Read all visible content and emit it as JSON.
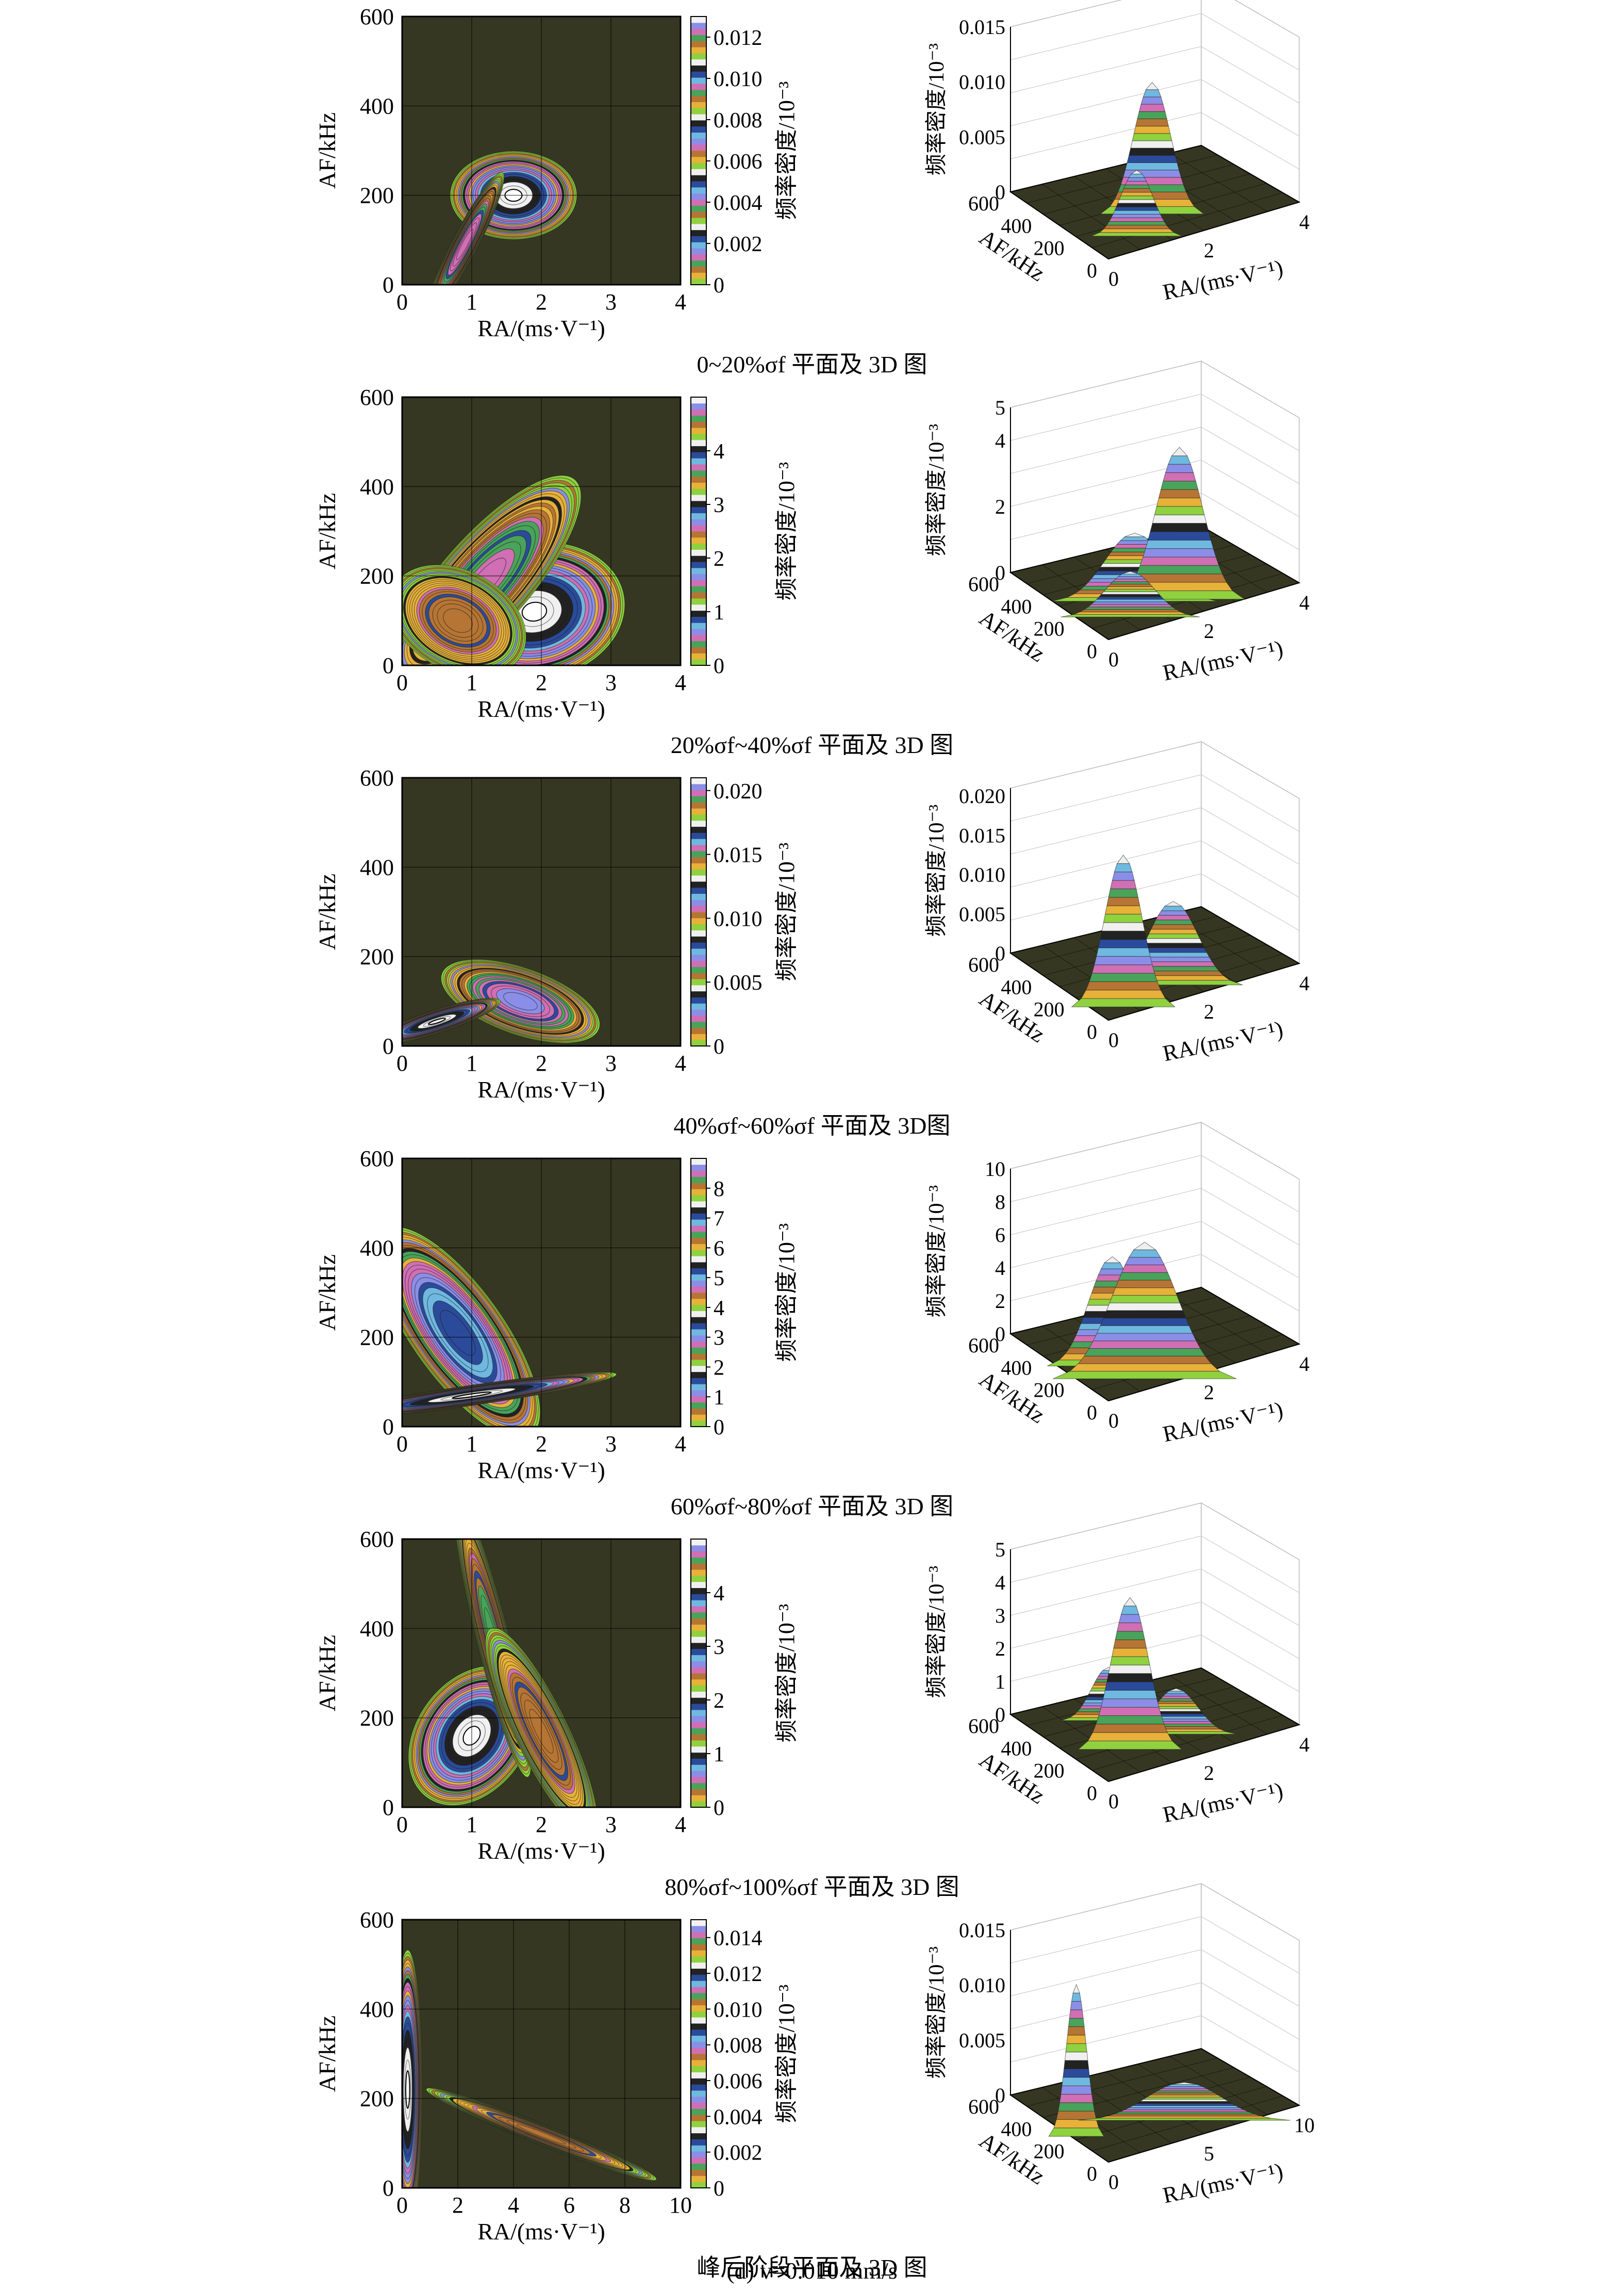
{
  "figure": {
    "caption": "(d) v=0.010 mm/s"
  },
  "chart_data": [
    {
      "type": "heatmap",
      "panel_caption": "0~20%σf 平面及 3D 图",
      "xlabel": "RA/(ms·V⁻¹)",
      "ylabel": "AF/kHz",
      "xlim": [
        0,
        4
      ],
      "ylim": [
        0,
        600
      ],
      "xticks": [
        "0",
        "1",
        "2",
        "3",
        "4"
      ],
      "yticks": [
        "0",
        "200",
        "400",
        "600"
      ],
      "colorbar": {
        "label": "频率密度/10⁻³",
        "range": [
          0,
          0.013
        ],
        "ticks": [
          "0",
          "0.002",
          "0.004",
          "0.006",
          "0.008",
          "0.010",
          "0.012"
        ]
      },
      "peaks": [
        {
          "ra": 1.6,
          "af": 200,
          "sx": 0.35,
          "sy": 38,
          "rho": 0.0,
          "amp": 1.0
        },
        {
          "ra": 0.9,
          "af": 90,
          "sx": 0.28,
          "sy": 80,
          "rho": 0.93,
          "amp": 0.5
        }
      ],
      "surface": {
        "zlabel": "频率密度/10⁻³",
        "zticks": [
          "0",
          "0.005",
          "0.010",
          "0.015"
        ],
        "zmax": 0.015,
        "ra_ticks": [
          "0",
          "2",
          "4"
        ],
        "af_ticks": [
          "0",
          "200",
          "400",
          "600"
        ]
      }
    },
    {
      "type": "heatmap",
      "panel_caption": "20%σf~40%σf 平面及 3D 图",
      "xlabel": "RA/(ms·V⁻¹)",
      "ylabel": "AF/kHz",
      "xlim": [
        0,
        4
      ],
      "ylim": [
        0,
        600
      ],
      "xticks": [
        "0",
        "1",
        "2",
        "3",
        "4"
      ],
      "yticks": [
        "0",
        "200",
        "400",
        "600"
      ],
      "colorbar": {
        "label": "频率密度/10⁻³",
        "range": [
          0,
          5
        ],
        "ticks": [
          "0",
          "1",
          "2",
          "3",
          "4"
        ]
      },
      "peaks": [
        {
          "ra": 1.9,
          "af": 120,
          "sx": 0.5,
          "sy": 60,
          "rho": 0.1,
          "amp": 1.0
        },
        {
          "ra": 1.2,
          "af": 190,
          "sx": 0.7,
          "sy": 120,
          "rho": 0.8,
          "amp": 0.45
        },
        {
          "ra": 0.8,
          "af": 100,
          "sx": 0.55,
          "sy": 70,
          "rho": -0.3,
          "amp": 0.3
        }
      ],
      "surface": {
        "zlabel": "频率密度/10⁻³",
        "zticks": [
          "0",
          "2",
          "4",
          "5"
        ],
        "zmax": 5,
        "ra_ticks": [
          "0",
          "2",
          "4"
        ],
        "af_ticks": [
          "0",
          "200",
          "400",
          "600"
        ]
      }
    },
    {
      "type": "heatmap",
      "panel_caption": "40%σf~60%σf 平面及 3D图",
      "xlabel": "RA/(ms·V⁻¹)",
      "ylabel": "AF/kHz",
      "xlim": [
        0,
        4
      ],
      "ylim": [
        0,
        600
      ],
      "xticks": [
        "0",
        "1",
        "2",
        "3",
        "4"
      ],
      "yticks": [
        "0",
        "200",
        "400",
        "600"
      ],
      "colorbar": {
        "label": "频率密度/10⁻³",
        "range": [
          0,
          0.021
        ],
        "ticks": [
          "0",
          "0.005",
          "0.010",
          "0.015",
          "0.020"
        ]
      },
      "peaks": [
        {
          "ra": 1.7,
          "af": 100,
          "sx": 0.55,
          "sy": 45,
          "rho": -0.55,
          "amp": 0.55
        },
        {
          "ra": 0.5,
          "af": 55,
          "sx": 0.35,
          "sy": 20,
          "rho": 0.85,
          "amp": 1.0
        }
      ],
      "surface": {
        "zlabel": "频率密度/10⁻³",
        "zticks": [
          "0",
          "0.005",
          "0.010",
          "0.015",
          "0.020"
        ],
        "zmax": 0.021,
        "ra_ticks": [
          "0",
          "2",
          "4"
        ],
        "af_ticks": [
          "0",
          "200",
          "400",
          "600"
        ]
      }
    },
    {
      "type": "heatmap",
      "panel_caption": "60%σf~80%σf 平面及 3D 图",
      "xlabel": "RA/(ms·V⁻¹)",
      "ylabel": "AF/kHz",
      "xlim": [
        0,
        4
      ],
      "ylim": [
        0,
        600
      ],
      "xticks": [
        "0",
        "1",
        "2",
        "3",
        "4"
      ],
      "yticks": [
        "0",
        "200",
        "400",
        "600"
      ],
      "colorbar": {
        "label": "频率密度/10⁻³",
        "range": [
          0,
          9
        ],
        "ticks": [
          "0",
          "1",
          "2",
          "3",
          "4",
          "5",
          "6",
          "7",
          "8"
        ]
      },
      "peaks": [
        {
          "ra": 0.8,
          "af": 210,
          "sx": 0.5,
          "sy": 100,
          "rho": -0.75,
          "amp": 0.8
        },
        {
          "ra": 1.0,
          "af": 70,
          "sx": 0.8,
          "sy": 20,
          "rho": 0.9,
          "amp": 1.0
        }
      ],
      "surface": {
        "zlabel": "频率密度/10⁻³",
        "zticks": [
          "0",
          "2",
          "4",
          "6",
          "8",
          "10"
        ],
        "zmax": 10,
        "ra_ticks": [
          "0",
          "2",
          "4"
        ],
        "af_ticks": [
          "0",
          "200",
          "400",
          "600"
        ]
      }
    },
    {
      "type": "heatmap",
      "panel_caption": "80%σf~100%σf 平面及 3D 图",
      "xlabel": "RA/(ms·V⁻¹)",
      "ylabel": "AF/kHz",
      "xlim": [
        0,
        4
      ],
      "ylim": [
        0,
        600
      ],
      "xticks": [
        "0",
        "1",
        "2",
        "3",
        "4"
      ],
      "yticks": [
        "0",
        "200",
        "400",
        "600"
      ],
      "colorbar": {
        "label": "频率密度/10⁻³",
        "range": [
          0,
          5
        ],
        "ticks": [
          "0",
          "1",
          "2",
          "3",
          "4"
        ]
      },
      "peaks": [
        {
          "ra": 1.0,
          "af": 160,
          "sx": 0.35,
          "sy": 60,
          "rho": 0.3,
          "amp": 1.0
        },
        {
          "ra": 1.3,
          "af": 380,
          "sx": 0.3,
          "sy": 170,
          "rho": -0.9,
          "amp": 0.35
        },
        {
          "ra": 2.0,
          "af": 170,
          "sx": 0.45,
          "sy": 130,
          "rho": -0.85,
          "amp": 0.3
        }
      ],
      "surface": {
        "zlabel": "频率密度/10⁻³",
        "zticks": [
          "0",
          "1",
          "2",
          "3",
          "4",
          "5"
        ],
        "zmax": 5,
        "ra_ticks": [
          "0",
          "2",
          "4"
        ],
        "af_ticks": [
          "0",
          "200",
          "400",
          "600"
        ]
      }
    },
    {
      "type": "heatmap",
      "panel_caption": "峰后阶段平面及 3D 图",
      "xlabel": "RA/(ms·V⁻¹)",
      "ylabel": "AF/kHz",
      "xlim": [
        0,
        10
      ],
      "ylim": [
        0,
        600
      ],
      "xticks": [
        "0",
        "2",
        "4",
        "6",
        "8",
        "10"
      ],
      "yticks": [
        "0",
        "200",
        "400",
        "600"
      ],
      "colorbar": {
        "label": "频率密度/10⁻³",
        "range": [
          0,
          0.015
        ],
        "ticks": [
          "0",
          "0.002",
          "0.004",
          "0.006",
          "0.008",
          "0.010",
          "0.012",
          "0.014"
        ]
      },
      "peaks": [
        {
          "ra": 0.2,
          "af": 220,
          "sx": 0.2,
          "sy": 120,
          "rho": 0.0,
          "amp": 1.0
        },
        {
          "ra": 5.0,
          "af": 120,
          "sx": 2.4,
          "sy": 60,
          "rho": -0.97,
          "amp": 0.25
        }
      ],
      "surface": {
        "zlabel": "频率密度/10⁻³",
        "zticks": [
          "0",
          "0.005",
          "0.010",
          "0.015"
        ],
        "zmax": 0.015,
        "ra_ticks": [
          "0",
          "5",
          "10"
        ],
        "af_ticks": [
          "0",
          "200",
          "400",
          "600"
        ]
      }
    }
  ]
}
